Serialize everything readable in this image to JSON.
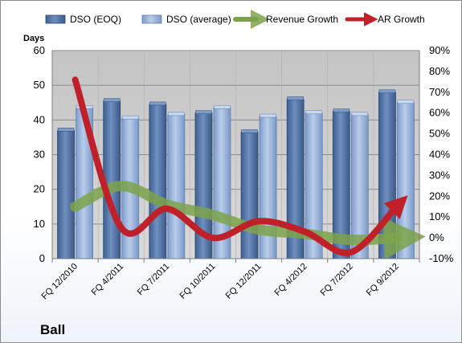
{
  "chart_data": {
    "type": "bar",
    "title": "Ball",
    "y_left_label": "Days",
    "y_left_range": [
      0,
      60
    ],
    "y_left_ticks": [
      "0",
      "10",
      "20",
      "30",
      "40",
      "50",
      "60"
    ],
    "y_right_range": [
      -10,
      90
    ],
    "y_right_ticks": [
      "-10%",
      "0%",
      "10%",
      "20%",
      "30%",
      "40%",
      "50%",
      "60%",
      "70%",
      "80%",
      "90%"
    ],
    "categories": [
      "FQ 12/2010",
      "FQ 4/2011",
      "FQ 7/2011",
      "FQ 10/2011",
      "FQ 12/2011",
      "FQ 4/2012",
      "FQ 7/2012",
      "FQ 9/2012"
    ],
    "grid": true,
    "legend_position": "top",
    "series": [
      {
        "name": "DSO (EOQ)",
        "type": "bar",
        "axis": "left",
        "color": "#4a6b9e",
        "values": [
          37,
          45.5,
          44.5,
          42,
          36.5,
          46,
          42.5,
          48
        ]
      },
      {
        "name": "DSO (average)",
        "type": "bar",
        "axis": "left",
        "color": "#89a9d8",
        "values": [
          43.5,
          40.5,
          41.5,
          43.5,
          41,
          42,
          41.5,
          45
        ]
      },
      {
        "name": "Revenue Growth",
        "type": "line",
        "axis": "right",
        "color": "#7da34a",
        "values": [
          15,
          25,
          16,
          11,
          4,
          2,
          -1,
          0
        ]
      },
      {
        "name": "AR Growth",
        "type": "line",
        "axis": "right",
        "color": "#c0202a",
        "values": [
          76,
          5,
          14,
          0,
          8,
          3,
          -7,
          15
        ]
      }
    ]
  }
}
